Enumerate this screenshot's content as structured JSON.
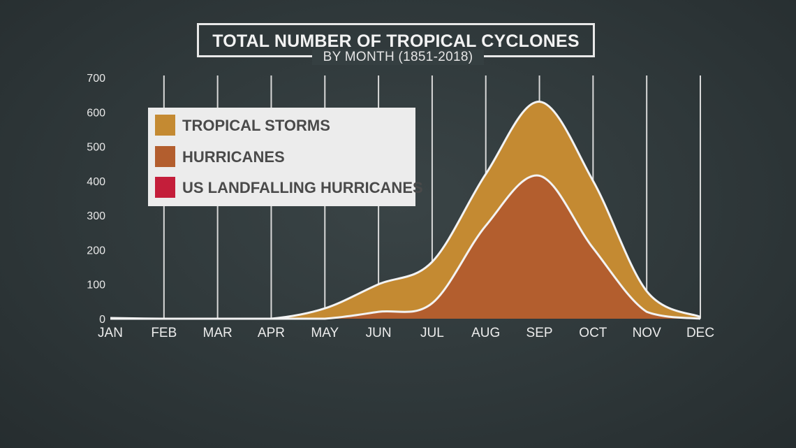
{
  "title": "TOTAL NUMBER OF TROPICAL CYCLONES",
  "subtitle": "BY MONTH (1851-2018)",
  "legend": [
    {
      "label": "TROPICAL STORMS",
      "color": "#c48a32"
    },
    {
      "label": "HURRICANES",
      "color": "#b35e2e"
    },
    {
      "label": "US LANDFALLING HURRICANES",
      "color": "#c41e3a"
    }
  ],
  "chart_data": {
    "type": "area",
    "x": [
      "JAN",
      "FEB",
      "MAR",
      "APR",
      "MAY",
      "JUN",
      "JUL",
      "AUG",
      "SEP",
      "OCT",
      "NOV",
      "DEC"
    ],
    "series": [
      {
        "name": "TROPICAL STORMS",
        "values": [
          2,
          0,
          0,
          0,
          30,
          100,
          165,
          420,
          630,
          400,
          80,
          5
        ],
        "color": "#c48a32"
      },
      {
        "name": "HURRICANES",
        "values": [
          0,
          0,
          0,
          0,
          0,
          20,
          45,
          270,
          415,
          205,
          20,
          0
        ],
        "color": "#b35e2e"
      }
    ],
    "yticks": [
      0,
      100,
      200,
      300,
      400,
      500,
      600,
      700
    ],
    "ylim": [
      0,
      700
    ],
    "grid": true,
    "legend_position": "top-left"
  }
}
